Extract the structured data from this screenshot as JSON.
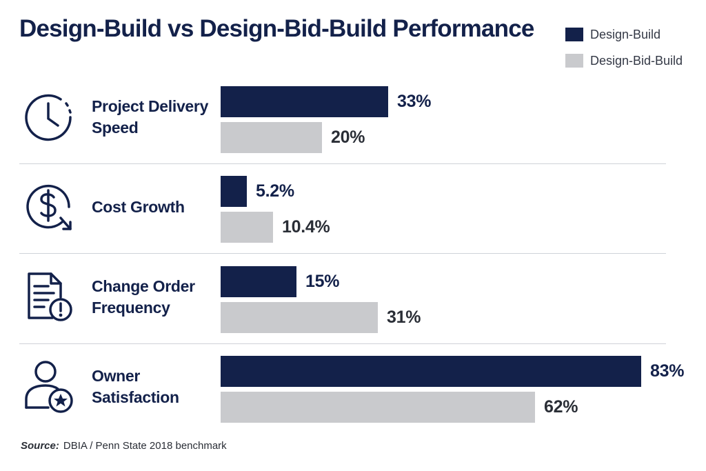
{
  "chart_data": {
    "type": "bar",
    "orientation": "horizontal",
    "title": "Design-Build vs Design-Bid-Build Performance",
    "categories": [
      "Project Delivery Speed",
      "Cost Growth",
      "Change Order Frequency",
      "Owner Satisfaction"
    ],
    "category_lines": [
      [
        "Project Delivery",
        "Speed"
      ],
      [
        "Cost Growth"
      ],
      [
        "Change Order",
        "Frequency"
      ],
      [
        "Owner",
        "Satisfaction"
      ]
    ],
    "series": [
      {
        "name": "Design-Build",
        "values": [
          33,
          5.2,
          15,
          83
        ],
        "labels": [
          "33%",
          "5.2%",
          "15%",
          "83%"
        ],
        "color": "#13214a"
      },
      {
        "name": "Design-Bid-Build",
        "values": [
          20,
          10.4,
          31,
          62
        ],
        "labels": [
          "20%",
          "10.4%",
          "31%",
          "62%"
        ],
        "color": "#c9cacd"
      }
    ],
    "legend_position": "top-right",
    "grid": false
  },
  "icons": [
    "clock-icon",
    "dollar-down-icon",
    "document-alert-icon",
    "user-star-icon"
  ],
  "source": {
    "label": "Source:",
    "text": "DBIA / Penn State 2018 benchmark"
  }
}
